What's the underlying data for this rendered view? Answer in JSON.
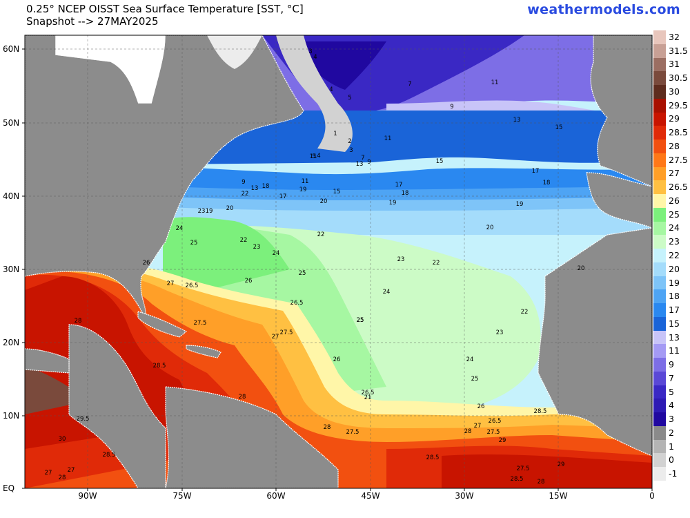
{
  "header": {
    "title_line1": "0.25° NCEP OISST Sea Surface Temperature [SST, °C]",
    "title_line2": "Snapshot --> 27MAY2025",
    "brand": "weathermodels.com"
  },
  "axes": {
    "lat_labels": [
      "60N",
      "50N",
      "40N",
      "30N",
      "20N",
      "10N",
      "EQ"
    ],
    "lon_labels": [
      "90W",
      "75W",
      "60W",
      "45W",
      "30W",
      "15W",
      "0"
    ]
  },
  "legend": {
    "entries": [
      {
        "label": "32",
        "color": "#e8c6bc"
      },
      {
        "label": "31.5",
        "color": "#c8a095"
      },
      {
        "label": "31",
        "color": "#9b6e62"
      },
      {
        "label": "30.5",
        "color": "#7a4a3c"
      },
      {
        "label": "30",
        "color": "#5e2c1e"
      },
      {
        "label": "29.5",
        "color": "#a81000"
      },
      {
        "label": "29",
        "color": "#c81400"
      },
      {
        "label": "28.5",
        "color": "#e02a08"
      },
      {
        "label": "28",
        "color": "#f25010"
      },
      {
        "label": "27.5",
        "color": "#ff7818"
      },
      {
        "label": "27",
        "color": "#ff9f28"
      },
      {
        "label": "26.5",
        "color": "#ffc042"
      },
      {
        "label": "26",
        "color": "#fff6a8"
      },
      {
        "label": "25",
        "color": "#7cf07c"
      },
      {
        "label": "24",
        "color": "#a6f7a2"
      },
      {
        "label": "23",
        "color": "#ccfbc6"
      },
      {
        "label": "22",
        "color": "#c6f2fc"
      },
      {
        "label": "20",
        "color": "#a4dcfb"
      },
      {
        "label": "19",
        "color": "#7ec4f8"
      },
      {
        "label": "18",
        "color": "#4ea4f4"
      },
      {
        "label": "17",
        "color": "#2a88f0"
      },
      {
        "label": "15",
        "color": "#1a64d8"
      },
      {
        "label": "13",
        "color": "#c8c4f8"
      },
      {
        "label": "11",
        "color": "#a49af4"
      },
      {
        "label": "9",
        "color": "#7d6ee6"
      },
      {
        "label": "7",
        "color": "#5a48d6"
      },
      {
        "label": "5",
        "color": "#3a28c4"
      },
      {
        "label": "4",
        "color": "#2e1ab4"
      },
      {
        "label": "3",
        "color": "#2008a0"
      },
      {
        "label": "2",
        "color": "#8a8a8a"
      },
      {
        "label": "1",
        "color": "#b4b4b4"
      },
      {
        "label": "0",
        "color": "#d2d2d2"
      },
      {
        "label": "-1",
        "color": "#ececec"
      }
    ]
  },
  "contour_labels": [
    "3",
    "4",
    "4",
    "5",
    "7",
    "9",
    "11",
    "11",
    "13",
    "15",
    "1",
    "2",
    "3",
    "11",
    "5",
    "4",
    "7",
    "9",
    "13",
    "15",
    "17",
    "18",
    "9",
    "13",
    "18",
    "11",
    "19",
    "15",
    "17",
    "20",
    "17",
    "18",
    "19",
    "20",
    "19",
    "23",
    "19",
    "20",
    "22",
    "24",
    "25",
    "22",
    "23",
    "22",
    "24",
    "23",
    "22",
    "26",
    "25",
    "27",
    "26.5",
    "26",
    "26.5",
    "24",
    "25",
    "22",
    "20",
    "27.5",
    "27",
    "27.5",
    "28",
    "25",
    "23",
    "28.5",
    "26",
    "24",
    "25",
    "28",
    "26.5",
    "21",
    "26",
    "28.5",
    "29.5",
    "27.5",
    "28",
    "27",
    "26.5",
    "27.5",
    "28",
    "30",
    "29",
    "28.5",
    "28.5",
    "27.5",
    "27",
    "28",
    "27",
    "28.5",
    "28",
    "29"
  ]
}
